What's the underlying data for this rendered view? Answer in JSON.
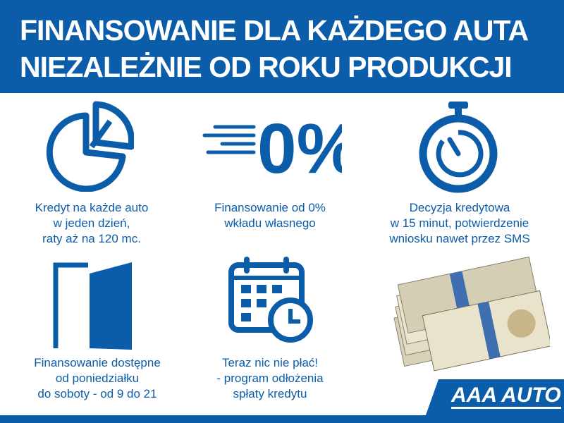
{
  "header": {
    "line1": "FINANSOWANIE DLA KAŻDEGO AUTA",
    "line2": "NIEZALEŻNIE OD ROKU PRODUKCJI"
  },
  "features": [
    {
      "icon": "pie-chart-icon",
      "lines": [
        "Kredyt na każde auto",
        "w jeden dzień,",
        "raty aż na 120 mc."
      ]
    },
    {
      "icon": "zero-percent-icon",
      "lines": [
        "Finansowanie od 0%",
        "wkładu własnego"
      ]
    },
    {
      "icon": "stopwatch-icon",
      "lines": [
        "Decyzja kredytowa",
        "w 15 minut, potwierdzenie",
        "wniosku nawet przez SMS"
      ]
    },
    {
      "icon": "door-icon",
      "lines": [
        "Finansowanie dostępne",
        "od poniedziałku",
        "do soboty - od 9 do 21"
      ]
    },
    {
      "icon": "calendar-clock-icon",
      "lines": [
        "Teraz nic nie płać!",
        "- program odłożenia",
        "spłaty kredytu"
      ]
    }
  ],
  "percent_icon_text": "0%",
  "logo": "AAA AUTO",
  "colors": {
    "brand": "#0b5ca9"
  }
}
